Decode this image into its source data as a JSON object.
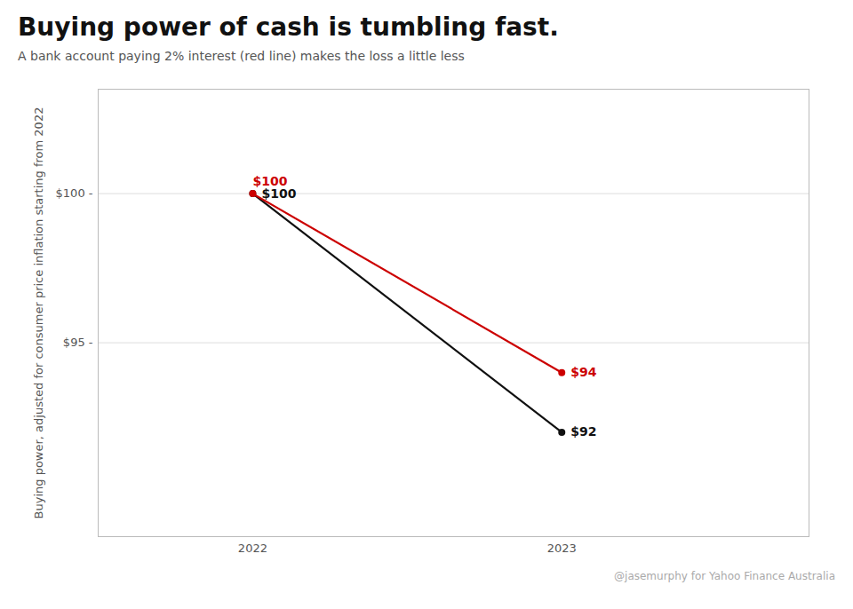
{
  "chart_data": {
    "type": "line",
    "title": "Buying power of cash is tumbling fast.",
    "subtitle": "A bank account paying 2% interest (red line) makes the loss a little less",
    "ylabel": "Buying power, adjusted for consumer price inflation starting from 2022",
    "caption": "@jasemurphy for Yahoo Finance Australia",
    "x": [
      2022,
      2023
    ],
    "series": [
      {
        "color": "#111111",
        "values": [
          100,
          92
        ],
        "value_labels": [
          "$100",
          "$92"
        ],
        "marker": "o"
      },
      {
        "color": "#cc0000",
        "values": [
          100,
          94
        ],
        "value_labels": [
          "$100",
          "$94"
        ],
        "marker": "o"
      }
    ],
    "data_labels": true,
    "xlim": [
      2021.5,
      2023.8
    ],
    "xticks": [
      2022,
      2023
    ],
    "ylim": [
      88.5,
      103.5
    ],
    "yticks": [
      {
        "value": 95,
        "label": "$95 -"
      },
      {
        "value": 100,
        "label": "$100 -"
      }
    ],
    "grid": "y"
  }
}
